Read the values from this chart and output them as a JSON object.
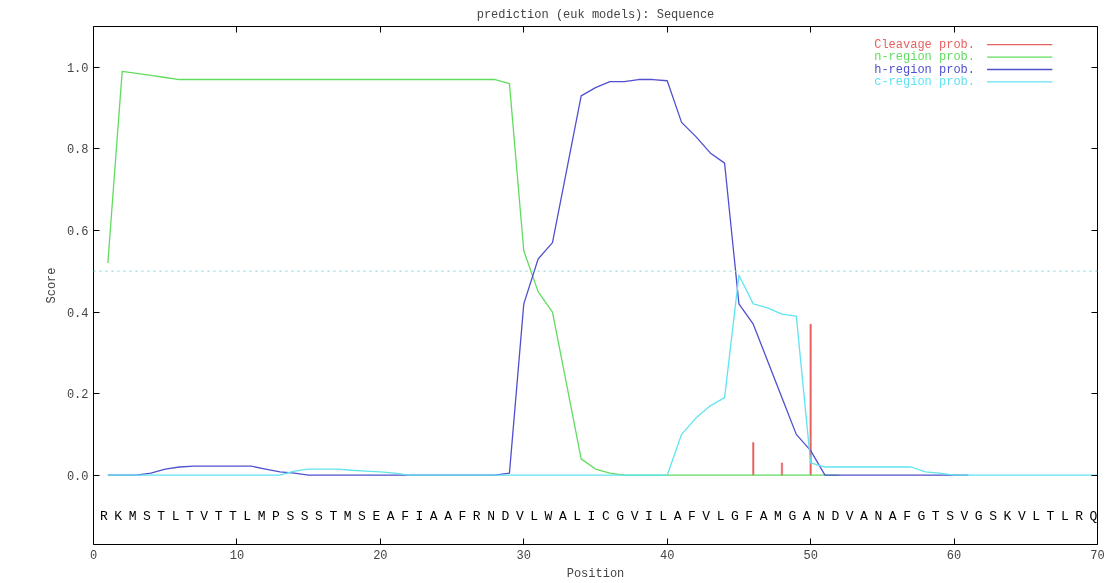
{
  "chart_data": {
    "type": "line",
    "title": "prediction (euk models): Sequence",
    "xlabel": "Position",
    "ylabel": "Score",
    "xlim": [
      0,
      70
    ],
    "ylim": [
      -0.17,
      1.1
    ],
    "xticks": [
      0,
      10,
      20,
      30,
      40,
      50,
      60,
      70
    ],
    "yticks": [
      {
        "value": 0,
        "label": "0.0"
      },
      0.2,
      0.4,
      0.6,
      0.8,
      {
        "value": 1,
        "label": "1.0"
      }
    ],
    "legend": "top right",
    "grid": false,
    "ref_lines": [
      {
        "axis": "y",
        "value": 0.5,
        "label": null,
        "color": "#a8e4e4",
        "line_style": "dotted"
      }
    ],
    "series": [
      {
        "name": "Cleavage prob.",
        "color": "#e86060",
        "type": "bar",
        "x": [
          46,
          48,
          50
        ],
        "values": [
          0.08,
          0.03,
          0.37
        ]
      },
      {
        "name": "n-region prob.",
        "color": "#60dc60",
        "x": [
          1,
          2,
          3,
          4,
          5,
          6,
          7,
          8,
          9,
          10,
          11,
          12,
          13,
          14,
          15,
          16,
          17,
          18,
          19,
          20,
          21,
          22,
          23,
          24,
          25,
          26,
          27,
          28,
          29,
          30,
          31,
          32,
          33,
          34,
          35,
          36,
          37,
          38,
          39,
          40,
          41,
          42,
          43,
          44,
          45,
          46,
          47,
          48,
          49,
          50,
          51,
          52
        ],
        "values": [
          0.52,
          0.99,
          0.985,
          0.98,
          0.975,
          0.97,
          0.97,
          0.97,
          0.97,
          0.97,
          0.97,
          0.97,
          0.97,
          0.97,
          0.97,
          0.97,
          0.97,
          0.97,
          0.97,
          0.97,
          0.97,
          0.97,
          0.97,
          0.97,
          0.97,
          0.97,
          0.97,
          0.97,
          0.96,
          0.55,
          0.45,
          0.4,
          0.22,
          0.04,
          0.015,
          0.005,
          0,
          0,
          0,
          0,
          0,
          0,
          0,
          0,
          0,
          0,
          0,
          0,
          0,
          0,
          0,
          0
        ]
      },
      {
        "name": "h-region prob.",
        "color": "#5050d0",
        "x": [
          1,
          2,
          3,
          4,
          5,
          6,
          7,
          8,
          9,
          10,
          11,
          12,
          13,
          14,
          15,
          16,
          17,
          18,
          19,
          20,
          21,
          22,
          23,
          24,
          25,
          26,
          27,
          28,
          29,
          30,
          31,
          32,
          33,
          34,
          35,
          36,
          37,
          38,
          39,
          40,
          41,
          42,
          43,
          44,
          45,
          46,
          47,
          48,
          49,
          50,
          51,
          52,
          53,
          54,
          55,
          56,
          57,
          58,
          59,
          60,
          61
        ],
        "values": [
          0,
          0,
          0,
          0.005,
          0.015,
          0.02,
          0.022,
          0.022,
          0.022,
          0.022,
          0.022,
          0.015,
          0.008,
          0.005,
          0,
          0,
          0,
          0,
          0,
          0,
          0,
          0,
          0,
          0,
          0,
          0,
          0,
          0,
          0.005,
          0.42,
          0.53,
          0.57,
          0.75,
          0.93,
          0.95,
          0.965,
          0.965,
          0.97,
          0.97,
          0.967,
          0.865,
          0.83,
          0.79,
          0.765,
          0.42,
          0.37,
          0.28,
          0.19,
          0.1,
          0.06,
          0,
          0,
          0,
          0,
          0,
          0,
          0,
          0,
          0,
          0,
          0
        ]
      },
      {
        "name": "c-region prob.",
        "color": "#60e4f0",
        "x": [
          1,
          2,
          3,
          4,
          5,
          6,
          7,
          8,
          9,
          10,
          11,
          12,
          13,
          14,
          15,
          16,
          17,
          18,
          19,
          20,
          21,
          22,
          23,
          24,
          25,
          26,
          27,
          28,
          29,
          30,
          31,
          32,
          33,
          34,
          35,
          36,
          37,
          38,
          39,
          40,
          41,
          42,
          43,
          44,
          45,
          46,
          47,
          48,
          49,
          50,
          51,
          52,
          53,
          54,
          55,
          56,
          57,
          58,
          59,
          60,
          61,
          62,
          63,
          64,
          65,
          66,
          67,
          68,
          69,
          70
        ],
        "values": [
          0,
          0,
          0,
          0,
          0,
          0,
          0,
          0,
          0,
          0,
          0,
          0,
          0,
          0.01,
          0.015,
          0.015,
          0.015,
          0.012,
          0.01,
          0.008,
          0.005,
          0,
          0,
          0,
          0,
          0,
          0,
          0,
          0,
          0,
          0,
          0,
          0,
          0,
          0,
          0,
          0,
          0,
          0,
          0,
          0.1,
          0.14,
          0.17,
          0.19,
          0.49,
          0.42,
          0.41,
          0.395,
          0.39,
          0.03,
          0.02,
          0.02,
          0.02,
          0.02,
          0.02,
          0.02,
          0.02,
          0.008,
          0.005,
          0,
          0,
          0,
          0,
          0,
          0,
          0,
          0,
          0,
          0,
          0
        ]
      }
    ],
    "annotations": [
      "R",
      "K",
      "M",
      "S",
      "T",
      "L",
      "T",
      "V",
      "T",
      "T",
      "L",
      "M",
      "P",
      "S",
      "S",
      "S",
      "T",
      "M",
      "S",
      "E",
      "A",
      "F",
      "I",
      "A",
      "A",
      "F",
      "R",
      "N",
      "D",
      "V",
      "L",
      "W",
      "A",
      "L",
      "I",
      "C",
      "G",
      "V",
      "I",
      "L",
      "A",
      "F",
      "V",
      "L",
      "G",
      "F",
      "A",
      "M",
      "G",
      "A",
      "N",
      "D",
      "V",
      "A",
      "N",
      "A",
      "F",
      "G",
      "T",
      "S",
      "V",
      "G",
      "S",
      "K",
      "V",
      "L",
      "T",
      "L",
      "R",
      "Q"
    ]
  }
}
